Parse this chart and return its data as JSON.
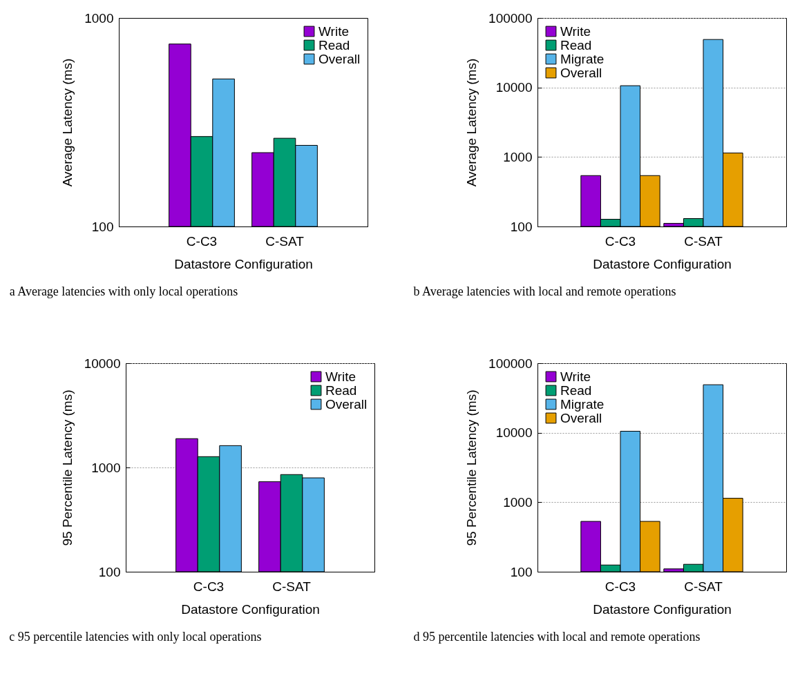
{
  "chart_data": [
    {
      "type": "bar",
      "categories": [
        "C-C3",
        "C-SAT"
      ],
      "xlabel": "Datastore Configuration",
      "ylabel": "Average Latency (ms)",
      "log": true,
      "ylim": [
        100,
        1000
      ],
      "yticks": [
        100,
        1000
      ],
      "legend": "top right",
      "annotations": [
        "a  Average latencies with only local operations"
      ],
      "series": [
        {
          "name": "Write",
          "color": "#9400d3",
          "values": [
            750,
            226
          ]
        },
        {
          "name": "Read",
          "color": "#009e73",
          "values": [
            270,
            265
          ]
        },
        {
          "name": "Overall",
          "color": "#56b4e9",
          "values": [
            510,
            245
          ]
        }
      ]
    },
    {
      "type": "bar",
      "categories": [
        "C-C3",
        "C-SAT"
      ],
      "xlabel": "Datastore Configuration",
      "ylabel": "Average Latency (ms)",
      "log": true,
      "ylim": [
        100,
        100000
      ],
      "yticks": [
        100,
        1000,
        10000,
        100000
      ],
      "grid": "y",
      "legend": "top left",
      "annotations": [
        "b  Average latencies with local and remote operations"
      ],
      "series": [
        {
          "name": "Write",
          "color": "#9400d3",
          "values": [
            540,
            111
          ]
        },
        {
          "name": "Read",
          "color": "#009e73",
          "values": [
            127,
            130
          ]
        },
        {
          "name": "Migrate",
          "color": "#56b4e9",
          "values": [
            10600,
            49000
          ]
        },
        {
          "name": "Overall",
          "color": "#e69f00",
          "values": [
            540,
            1140
          ]
        }
      ]
    },
    {
      "type": "bar",
      "categories": [
        "C-C3",
        "C-SAT"
      ],
      "xlabel": "Datastore Configuration",
      "ylabel": "95 Percentile Latency (ms)",
      "log": true,
      "ylim": [
        100,
        10000
      ],
      "yticks": [
        100,
        1000,
        10000
      ],
      "grid": "y",
      "legend": "top right",
      "annotations": [
        "c  95 percentile latencies with only local operations"
      ],
      "series": [
        {
          "name": "Write",
          "color": "#9400d3",
          "values": [
            1890,
            730
          ]
        },
        {
          "name": "Read",
          "color": "#009e73",
          "values": [
            1270,
            855
          ]
        },
        {
          "name": "Overall",
          "color": "#56b4e9",
          "values": [
            1620,
            795
          ]
        }
      ]
    },
    {
      "type": "bar",
      "categories": [
        "C-C3",
        "C-SAT"
      ],
      "xlabel": "Datastore Configuration",
      "ylabel": "95 Percentile Latency (ms)",
      "log": true,
      "ylim": [
        100,
        100000
      ],
      "yticks": [
        100,
        1000,
        10000,
        100000
      ],
      "grid": "y",
      "legend": "top left",
      "annotations": [
        "d  95 percentile latencies with local and remote operations"
      ],
      "series": [
        {
          "name": "Write",
          "color": "#9400d3",
          "values": [
            530,
            110
          ]
        },
        {
          "name": "Read",
          "color": "#009e73",
          "values": [
            125,
            128
          ]
        },
        {
          "name": "Migrate",
          "color": "#56b4e9",
          "values": [
            10500,
            49000
          ]
        },
        {
          "name": "Overall",
          "color": "#e69f00",
          "values": [
            530,
            1140
          ]
        }
      ]
    }
  ]
}
